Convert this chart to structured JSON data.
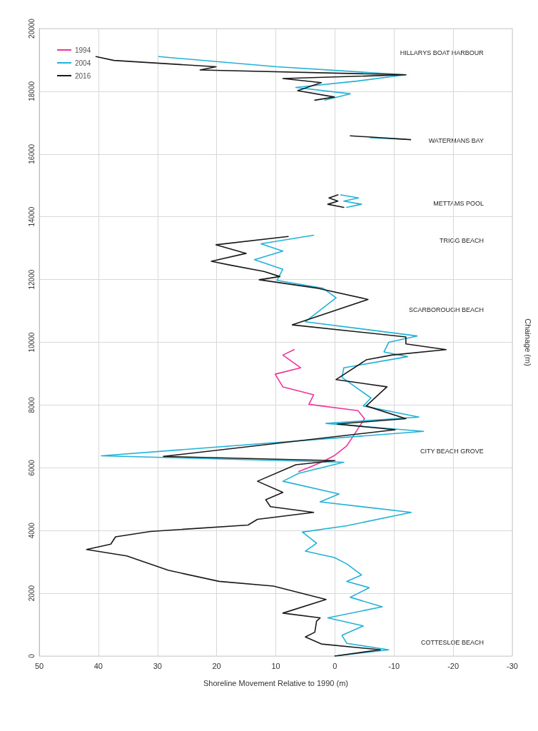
{
  "chart_data": {
    "type": "line",
    "ylabel": "Chainage (m)",
    "xlabel": "Shoreline Movement Relative to 1990 (m)",
    "ylim": [
      0,
      20000
    ],
    "yticks": [
      0,
      2000,
      4000,
      6000,
      8000,
      10000,
      12000,
      14000,
      16000,
      18000,
      20000
    ],
    "xlim": [
      50,
      -30
    ],
    "xticks": [
      50,
      40,
      30,
      20,
      10,
      0,
      -10,
      -20,
      -30
    ],
    "grid": true,
    "legend": "top left",
    "marker": "none",
    "line_style": "solid",
    "annotations": [
      "COTTESLOE BEACH",
      "CITY BEACH GROVE",
      "SCARBOROUGH BEACH",
      "TRIGG BEACH",
      "METTAMS POOL",
      "WATERMANS BAY",
      "HILLARYS BOAT HARBOUR"
    ],
    "series": [
      {
        "name": "1994",
        "color": "#f0359a",
        "values": [
          5880,
          6000,
          6200,
          6400,
          6700,
          7010,
          7567,
          7820,
          8023,
          8327,
          8580,
          8985,
          9188,
          9593,
          9765
        ],
        "x": [
          6.1,
          4.5,
          2,
          0,
          -2,
          -3.1,
          -5,
          -3.9,
          4.4,
          3.6,
          8.8,
          10.1,
          5.8,
          8.8,
          6.9
        ]
      },
      {
        "name": "2004",
        "color": "#22b2d8",
        "values": [
          0,
          200,
          405,
          658,
          962,
          1216,
          1570,
          1874,
          2178,
          2380,
          2583,
          2938,
          3140,
          3343,
          3596,
          3951,
          4154,
          4579,
          4913,
          5166,
          5572,
          5825,
          6179,
          6382,
          7162,
          7415,
          7618,
          7972,
          8225,
          8884,
          9188,
          9542,
          9694,
          9998,
          10201,
          10656,
          11417,
          11720,
          11974,
          12329,
          12633,
          12906,
          13139,
          13412,
          null,
          14300,
          14400,
          14500,
          14600,
          14700,
          null,
          16520,
          16470,
          null,
          17717,
          17920,
          18123,
          18325,
          18528,
          18781,
          19106
        ],
        "x": [
          0,
          -9.1,
          -2,
          -1.2,
          -4.8,
          1.2,
          -8,
          -2.6,
          -5.8,
          -2,
          -4.5,
          -2,
          0.1,
          5,
          3.1,
          5.5,
          -2,
          -12.9,
          2.5,
          -0.7,
          8.8,
          6.1,
          -1.5,
          39.5,
          -15,
          1.5,
          -14.2,
          -4.8,
          -6.1,
          -1.2,
          -1.5,
          -12.3,
          -8.3,
          -9.1,
          -13.9,
          5,
          -0.2,
          2,
          9.8,
          8.8,
          13.6,
          8.8,
          12.5,
          3.6,
          null,
          -2,
          -4.5,
          -1.5,
          -4,
          -1,
          null,
          -6,
          -12,
          null,
          1.7,
          -2.6,
          6.6,
          -3.7,
          -12,
          9.8,
          29.8
        ]
      },
      {
        "name": "2016",
        "color": "#1a1a1a",
        "values": [
          0,
          200,
          385,
          608,
          760,
          1114,
          1216,
          1368,
          1803,
          2229,
          2380,
          2735,
          3191,
          3394,
          3566,
          3799,
          3971,
          4174,
          4356,
          4579,
          4761,
          4984,
          5217,
          5572,
          6098,
          6230,
          6362,
          7213,
          7395,
          7567,
          7972,
          8580,
          8813,
          9340,
          9441,
          9593,
          9765,
          9948,
          10171,
          10555,
          11366,
          11720,
          11994,
          12096,
          12258,
          12460,
          12582,
          12835,
          13108,
          13372,
          null,
          14300,
          14400,
          14500,
          14600,
          14700,
          null,
          16580,
          16520,
          16460,
          null,
          17717,
          17819,
          18022,
          18275,
          18406,
          18528,
          18680,
          18781,
          18984,
          19106
        ],
        "x": [
          0,
          -7.7,
          2.3,
          5,
          3.4,
          3.1,
          2.5,
          8.8,
          1.5,
          10.4,
          19.6,
          28.2,
          35.2,
          42,
          37.9,
          37.1,
          31.2,
          14.7,
          13.1,
          3.6,
          10.9,
          11.7,
          8.8,
          13.1,
          6.6,
          0,
          29,
          -10.2,
          -0.4,
          -12,
          -5.3,
          -8.8,
          -0.2,
          -4.5,
          -5.3,
          -9.6,
          -18.8,
          -12,
          -12,
          7.2,
          -5.6,
          2.8,
          12.8,
          9.3,
          12,
          17.7,
          20.9,
          15,
          20.1,
          7.9,
          null,
          -1.5,
          1.2,
          -0.5,
          1,
          -0.5,
          null,
          -2.6,
          -8,
          -12.8,
          null,
          3.4,
          0.1,
          6.3,
          2.3,
          8.8,
          -12,
          22.8,
          20.1,
          37.4,
          40.4
        ]
      }
    ]
  }
}
